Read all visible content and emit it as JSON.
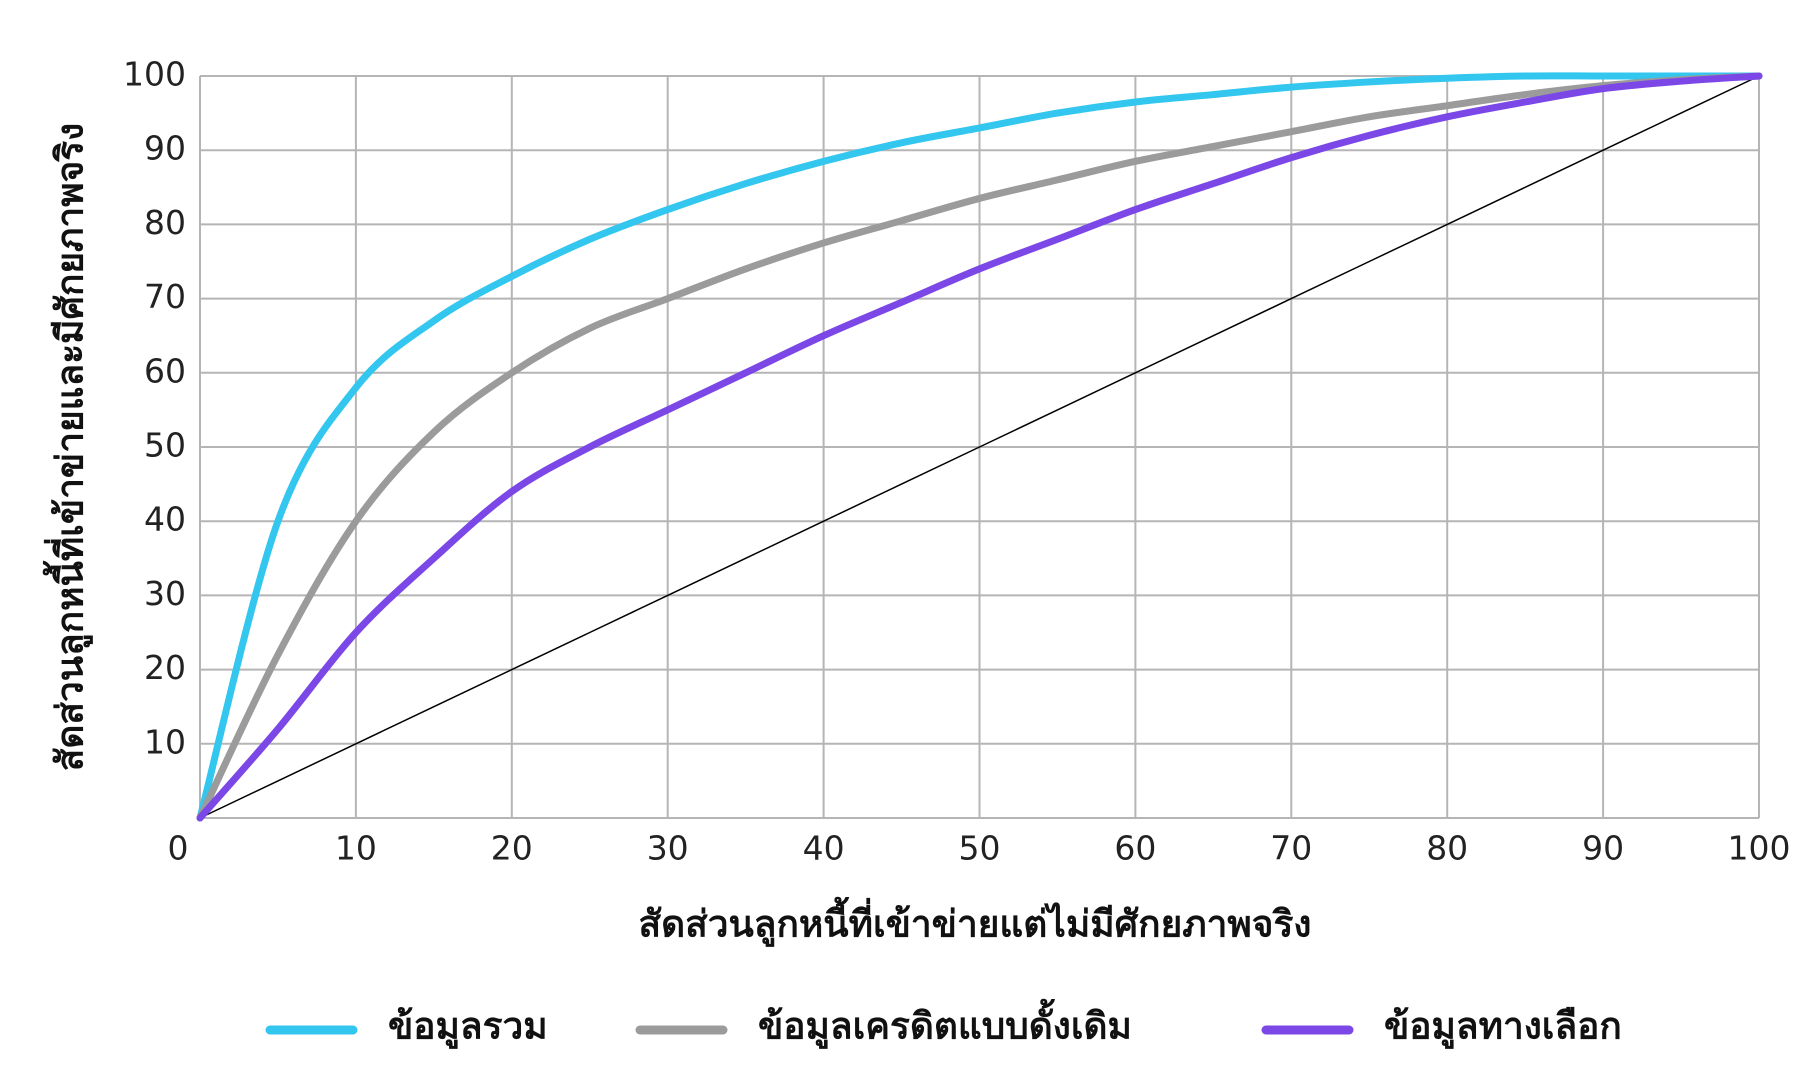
{
  "chart_data": {
    "type": "line",
    "xlabel": "สัดส่วนลูกหนี้ที่เข้าข่ายแต่ไม่มีศักยภาพจริง",
    "ylabel": "สัดส่วนลูกหนี้ที่เข้าข่ายและมีศักยภาพจริง",
    "x": [
      0,
      5,
      10,
      15,
      20,
      25,
      30,
      35,
      40,
      45,
      50,
      55,
      60,
      65,
      70,
      75,
      80,
      85,
      90,
      95,
      100
    ],
    "series": [
      {
        "name": "ข้อมูลรวม",
        "color": "#33c6ef",
        "values": [
          0,
          40,
          58,
          67,
          73,
          78,
          82,
          85.5,
          88.5,
          91,
          93,
          95,
          96.5,
          97.5,
          98.5,
          99.2,
          99.7,
          100,
          100,
          100,
          100
        ]
      },
      {
        "name": "ข้อมูลเครดิตแบบดั้งเดิม",
        "color": "#9b9b9b",
        "values": [
          0,
          22,
          40,
          52,
          60,
          66,
          70,
          74,
          77.5,
          80.5,
          83.5,
          86,
          88.5,
          90.5,
          92.5,
          94.5,
          96,
          97.5,
          98.7,
          99.5,
          100
        ]
      },
      {
        "name": "ข้อมูลทางเลือก",
        "color": "#7b47e6",
        "values": [
          0,
          12,
          25,
          35,
          44,
          50,
          55,
          60,
          65,
          69.5,
          74,
          78,
          82,
          85.5,
          89,
          92,
          94.5,
          96.5,
          98.3,
          99.3,
          100
        ]
      },
      {
        "color": "#000000",
        "values": [
          0,
          5,
          10,
          15,
          20,
          25,
          30,
          35,
          40,
          45,
          50,
          55,
          60,
          65,
          70,
          75,
          80,
          85,
          90,
          95,
          100
        ]
      }
    ],
    "xlim": [
      0,
      100
    ],
    "xticks": [
      0,
      10,
      20,
      30,
      40,
      50,
      60,
      70,
      80,
      90,
      100
    ],
    "ylim": [
      0,
      100
    ],
    "yticks": [
      10,
      20,
      30,
      40,
      50,
      60,
      70,
      80,
      90,
      100
    ],
    "grid": true
  }
}
